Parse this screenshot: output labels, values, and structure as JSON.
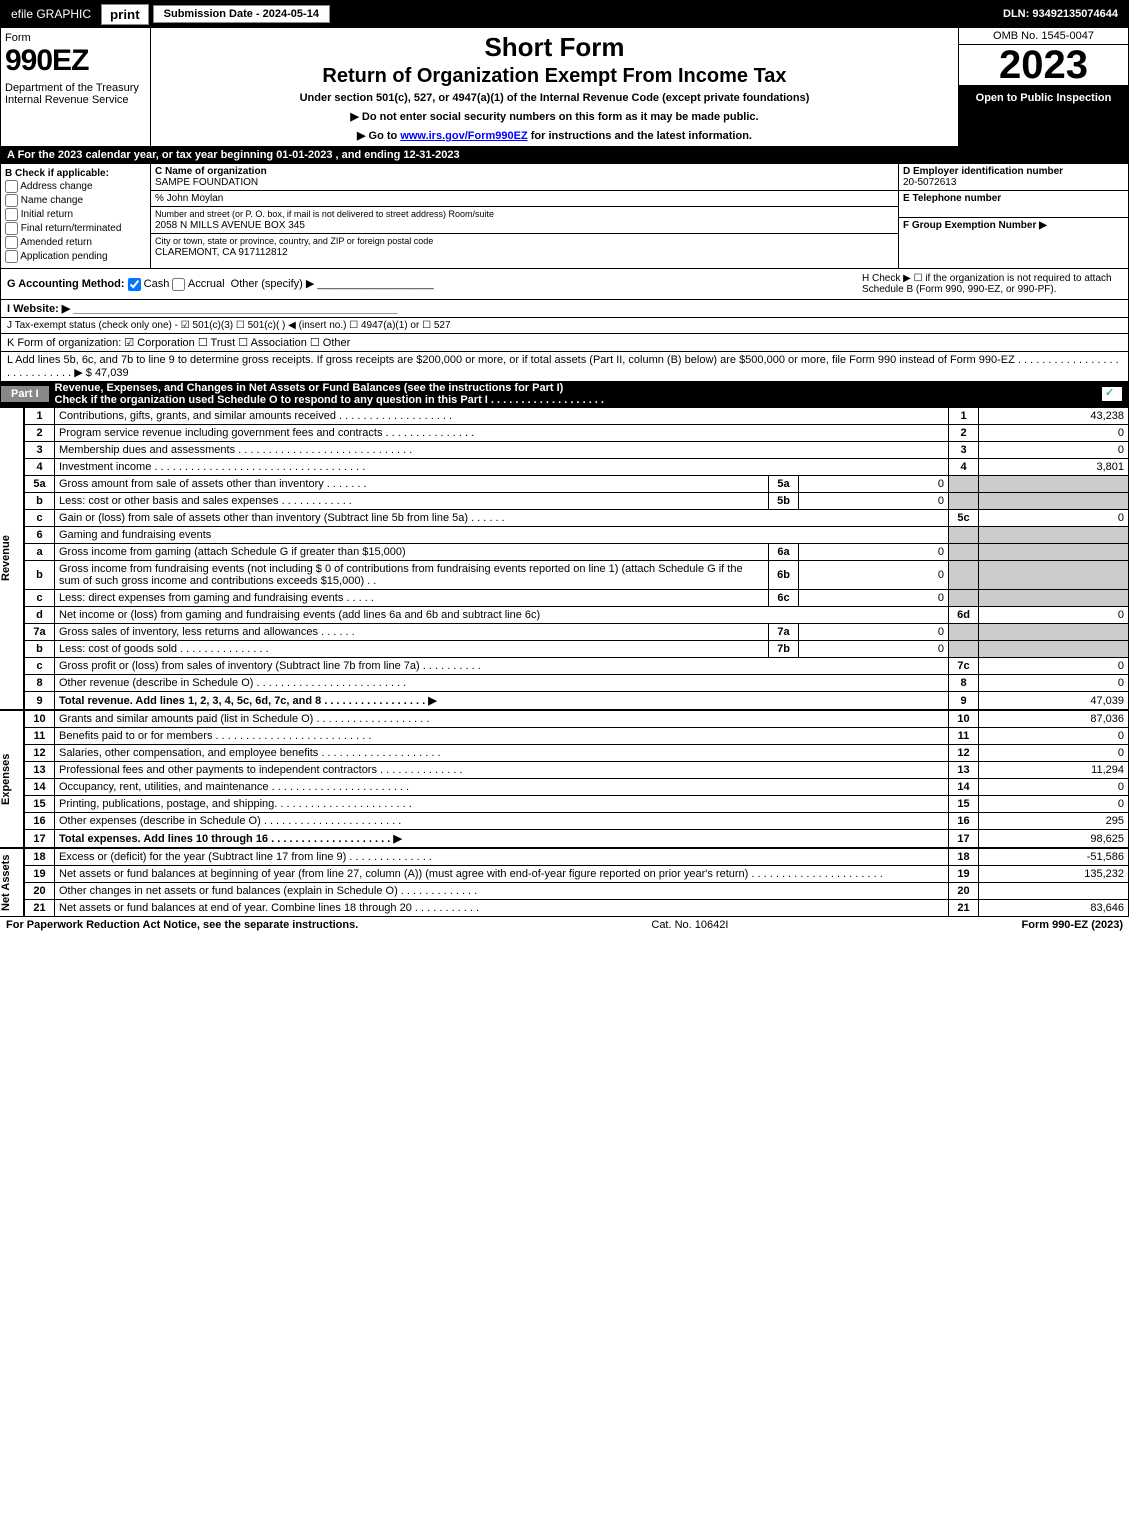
{
  "topbar": {
    "efile": "efile GRAPHIC",
    "print": "print",
    "subdate": "Submission Date - 2024-05-14",
    "dln": "DLN: 93492135074644"
  },
  "header": {
    "form": "Form",
    "form_no": "990EZ",
    "dept": "Department of the Treasury\nInternal Revenue Service",
    "t1": "Short Form",
    "t2": "Return of Organization Exempt From Income Tax",
    "t3": "Under section 501(c), 527, or 4947(a)(1) of the Internal Revenue Code (except private foundations)",
    "t4a": "▶ Do not enter social security numbers on this form as it may be made public.",
    "t4b": "▶ Go to www.irs.gov/Form990EZ for instructions and the latest information.",
    "omb": "OMB No. 1545-0047",
    "year": "2023",
    "open": "Open to Public Inspection"
  },
  "rowA": "A  For the 2023 calendar year, or tax year beginning 01-01-2023 , and ending 12-31-2023",
  "B": {
    "hd": "B  Check if applicable:",
    "opts": [
      "Address change",
      "Name change",
      "Initial return",
      "Final return/terminated",
      "Amended return",
      "Application pending"
    ]
  },
  "C": {
    "hd": "C Name of organization",
    "name": "SAMPE FOUNDATION",
    "care": "% John Moylan",
    "addr_hd": "Number and street (or P. O. box, if mail is not delivered to street address)         Room/suite",
    "addr": "2058 N MILLS AVENUE BOX 345",
    "city_hd": "City or town, state or province, country, and ZIP or foreign postal code",
    "city": "CLAREMONT, CA  917112812"
  },
  "D": {
    "hd": "D Employer identification number",
    "ein": "20-5072613",
    "tel_hd": "E Telephone number",
    "tel": "",
    "grp_hd": "F Group Exemption Number  ▶",
    "grp": ""
  },
  "G": {
    "lbl": "G Accounting Method:",
    "cash": "Cash",
    "accr": "Accrual",
    "oth": "Other (specify) ▶"
  },
  "H": "H   Check ▶  ☐  if the organization is not required to attach Schedule B (Form 990, 990-EZ, or 990-PF).",
  "I": "I Website: ▶",
  "J": "J Tax-exempt status (check only one) - ☑ 501(c)(3)  ☐ 501(c)(  ) ◀ (insert no.)  ☐ 4947(a)(1) or  ☐ 527",
  "K": "K Form of organization:  ☑ Corporation   ☐ Trust   ☐ Association   ☐ Other",
  "L": {
    "txt": "L Add lines 5b, 6c, and 7b to line 9 to determine gross receipts. If gross receipts are $200,000 or more, or if total assets (Part II, column (B) below) are $500,000 or more, file Form 990 instead of Form 990-EZ  .  .  .  .  .  .  .  .  .  .  .  .  .  .  .  .  .  .  .  .  .  .  .  .  .  .  .  .  ▶",
    "amt": "$ 47,039"
  },
  "part1": {
    "lbl": "Part I",
    "txt": "Revenue, Expenses, and Changes in Net Assets or Fund Balances (see the instructions for Part I)\nCheck if the organization used Schedule O to respond to any question in this Part I  .  .  .  .  .  .  .  .  .  .  .  .  .  .  .  .  .  .  ."
  },
  "rev_label": "Revenue",
  "exp_label": "Expenses",
  "na_label": "Net Assets",
  "lines": {
    "1": {
      "d": "Contributions, gifts, grants, and similar amounts received  .  .  .  .  .  .  .  .  .  .  .  .  .  .  .  .  .  .  .",
      "a": "43,238"
    },
    "2": {
      "d": "Program service revenue including government fees and contracts  .  .  .  .  .  .  .  .  .  .  .  .  .  .  .",
      "a": "0"
    },
    "3": {
      "d": "Membership dues and assessments  .  .  .  .  .  .  .  .  .  .  .  .  .  .  .  .  .  .  .  .  .  .  .  .  .  .  .  .  .",
      "a": "0"
    },
    "4": {
      "d": "Investment income  .  .  .  .  .  .  .  .  .  .  .  .  .  .  .  .  .  .  .  .  .  .  .  .  .  .  .  .  .  .  .  .  .  .  .",
      "a": "3,801"
    },
    "5a": {
      "d": "Gross amount from sale of assets other than inventory  .  .  .  .  .  .  .",
      "sv": "0"
    },
    "5b": {
      "d": "Less: cost or other basis and sales expenses  .  .  .  .  .  .  .  .  .  .  .  .",
      "sv": "0"
    },
    "5c": {
      "d": "Gain or (loss) from sale of assets other than inventory (Subtract line 5b from line 5a)  .  .  .  .  .  .",
      "a": "0"
    },
    "6": {
      "d": "Gaming and fundraising events"
    },
    "6a": {
      "d": "Gross income from gaming (attach Schedule G if greater than $15,000)",
      "sv": "0"
    },
    "6b": {
      "d": "Gross income from fundraising events (not including $  0            of contributions from fundraising events reported on line 1) (attach Schedule G if the sum of such gross income and contributions exceeds $15,000)   .  .",
      "sv": "0"
    },
    "6c": {
      "d": "Less: direct expenses from gaming and fundraising events  .  .  .  .  .",
      "sv": "0"
    },
    "6d": {
      "d": "Net income or (loss) from gaming and fundraising events (add lines 6a and 6b and subtract line 6c)",
      "a": "0"
    },
    "7a": {
      "d": "Gross sales of inventory, less returns and allowances  .  .  .  .  .  .",
      "sv": "0"
    },
    "7b": {
      "d": "Less: cost of goods sold       .  .  .  .  .  .  .  .  .  .  .  .  .  .  .",
      "sv": "0"
    },
    "7c": {
      "d": "Gross profit or (loss) from sales of inventory (Subtract line 7b from line 7a)  .  .  .  .  .  .  .  .  .  .",
      "a": "0"
    },
    "8": {
      "d": "Other revenue (describe in Schedule O)  .  .  .  .  .  .  .  .  .  .  .  .  .  .  .  .  .  .  .  .  .  .  .  .  .",
      "a": "0"
    },
    "9": {
      "d": "Total revenue. Add lines 1, 2, 3, 4, 5c, 6d, 7c, and 8   .  .  .  .  .  .  .  .  .  .  .  .  .  .  .  .  .      ▶",
      "a": "47,039"
    },
    "10": {
      "d": "Grants and similar amounts paid (list in Schedule O)  .  .  .  .  .  .  .  .  .  .  .  .  .  .  .  .  .  .  .",
      "a": "87,036"
    },
    "11": {
      "d": "Benefits paid to or for members     .  .  .  .  .  .  .  .  .  .  .  .  .  .  .  .  .  .  .  .  .  .  .  .  .  .",
      "a": "0"
    },
    "12": {
      "d": "Salaries, other compensation, and employee benefits .  .  .  .  .  .  .  .  .  .  .  .  .  .  .  .  .  .  .  .",
      "a": "0"
    },
    "13": {
      "d": "Professional fees and other payments to independent contractors  .  .  .  .  .  .  .  .  .  .  .  .  .  .",
      "a": "11,294"
    },
    "14": {
      "d": "Occupancy, rent, utilities, and maintenance .  .  .  .  .  .  .  .  .  .  .  .  .  .  .  .  .  .  .  .  .  .  .",
      "a": "0"
    },
    "15": {
      "d": "Printing, publications, postage, and shipping.  .  .  .  .  .  .  .  .  .  .  .  .  .  .  .  .  .  .  .  .  .  .",
      "a": "0"
    },
    "16": {
      "d": "Other expenses (describe in Schedule O)    .  .  .  .  .  .  .  .  .  .  .  .  .  .  .  .  .  .  .  .  .  .  .",
      "a": "295"
    },
    "17": {
      "d": "Total expenses. Add lines 10 through 16     .  .  .  .  .  .  .  .  .  .  .  .  .  .  .  .  .  .  .  .     ▶",
      "a": "98,625"
    },
    "18": {
      "d": "Excess or (deficit) for the year (Subtract line 17 from line 9)      .  .  .  .  .  .  .  .  .  .  .  .  .  .",
      "a": "-51,586"
    },
    "19": {
      "d": "Net assets or fund balances at beginning of year (from line 27, column (A)) (must agree with end-of-year figure reported on prior year's return) .  .  .  .  .  .  .  .  .  .  .  .  .  .  .  .  .  .  .  .  .  .",
      "a": "135,232"
    },
    "20": {
      "d": "Other changes in net assets or fund balances (explain in Schedule O) .  .  .  .  .  .  .  .  .  .  .  .  .",
      "a": ""
    },
    "21": {
      "d": "Net assets or fund balances at end of year. Combine lines 18 through 20 .  .  .  .  .  .  .  .  .  .  .",
      "a": "83,646"
    }
  },
  "footer": {
    "l": "For Paperwork Reduction Act Notice, see the separate instructions.",
    "m": "Cat. No. 10642I",
    "r": "Form 990-EZ (2023)"
  }
}
